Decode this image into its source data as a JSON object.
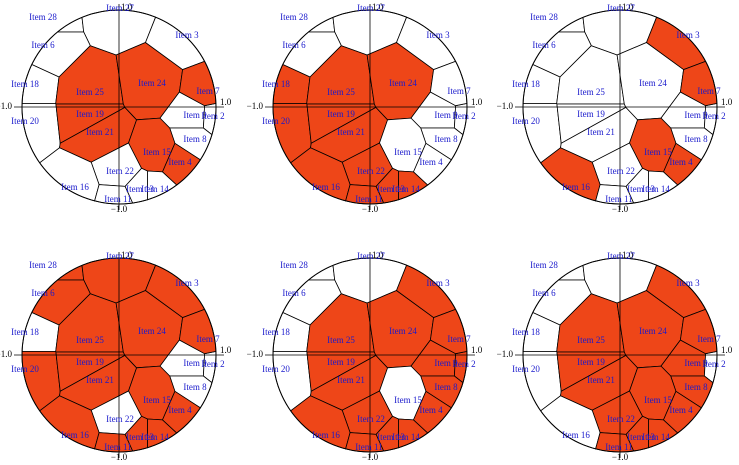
{
  "highlight_color": "#ee4618",
  "panels": [
    {
      "axis": {
        "left": "−1.0",
        "right": "1.0",
        "top": "1.0",
        "bottom": "−1.0"
      },
      "items": [
        {
          "label": "Item 28",
          "selected": false
        },
        {
          "label": "Item 27",
          "selected": false
        },
        {
          "label": "Item 6",
          "selected": false
        },
        {
          "label": "Item 18",
          "selected": false
        },
        {
          "label": "Item 20",
          "selected": false
        },
        {
          "label": "Item 25",
          "selected": true
        },
        {
          "label": "Item 19",
          "selected": true
        },
        {
          "label": "Item 21",
          "selected": true
        },
        {
          "label": "Item 24",
          "selected": true
        },
        {
          "label": "Item 3",
          "selected": false
        },
        {
          "label": "Item 9",
          "selected": false
        },
        {
          "label": "Item 2",
          "selected": false
        },
        {
          "label": "Item 8",
          "selected": false
        },
        {
          "label": "Item 15",
          "selected": true
        },
        {
          "label": "Item 4",
          "selected": true
        },
        {
          "label": "Item 22",
          "selected": false
        },
        {
          "label": "Item 16",
          "selected": false
        },
        {
          "label": "Item 14",
          "selected": false
        },
        {
          "label": "Item 13",
          "selected": false
        },
        {
          "label": "Item 7",
          "selected": true
        },
        {
          "label": "Item 11",
          "selected": false
        }
      ]
    },
    {
      "axis": {
        "left": "−1.0",
        "right": "1.0",
        "top": "1.0",
        "bottom": "−1.0"
      },
      "items": [
        {
          "label": "Item 28",
          "selected": false
        },
        {
          "label": "Item 27",
          "selected": false
        },
        {
          "label": "Item 6",
          "selected": false
        },
        {
          "label": "Item 18",
          "selected": true
        },
        {
          "label": "Item 20",
          "selected": true
        },
        {
          "label": "Item 25",
          "selected": true
        },
        {
          "label": "Item 19",
          "selected": true
        },
        {
          "label": "Item 21",
          "selected": true
        },
        {
          "label": "Item 24",
          "selected": true
        },
        {
          "label": "Item 3",
          "selected": false
        },
        {
          "label": "Item 9",
          "selected": false
        },
        {
          "label": "Item 2",
          "selected": false
        },
        {
          "label": "Item 8",
          "selected": false
        },
        {
          "label": "Item 15",
          "selected": false
        },
        {
          "label": "Item 4",
          "selected": false
        },
        {
          "label": "Item 22",
          "selected": true
        },
        {
          "label": "Item 16",
          "selected": true
        },
        {
          "label": "Item 14",
          "selected": true
        },
        {
          "label": "Item 13",
          "selected": true
        },
        {
          "label": "Item 7",
          "selected": false
        },
        {
          "label": "Item 11",
          "selected": true
        }
      ]
    },
    {
      "axis": {
        "left": "−1.0",
        "right": "1.0",
        "top": "1.0",
        "bottom": "−1.0"
      },
      "items": [
        {
          "label": "Item 28",
          "selected": false
        },
        {
          "label": "Item 27",
          "selected": false
        },
        {
          "label": "Item 6",
          "selected": false
        },
        {
          "label": "Item 18",
          "selected": false
        },
        {
          "label": "Item 20",
          "selected": false
        },
        {
          "label": "Item 25",
          "selected": false
        },
        {
          "label": "Item 19",
          "selected": false
        },
        {
          "label": "Item 21",
          "selected": false
        },
        {
          "label": "Item 24",
          "selected": false
        },
        {
          "label": "Item 3",
          "selected": true
        },
        {
          "label": "Item 9",
          "selected": false
        },
        {
          "label": "Item 2",
          "selected": false
        },
        {
          "label": "Item 8",
          "selected": false
        },
        {
          "label": "Item 15",
          "selected": true
        },
        {
          "label": "Item 4",
          "selected": true
        },
        {
          "label": "Item 22",
          "selected": false
        },
        {
          "label": "Item 16",
          "selected": true
        },
        {
          "label": "Item 14",
          "selected": false
        },
        {
          "label": "Item 13",
          "selected": false
        },
        {
          "label": "Item 7",
          "selected": true
        },
        {
          "label": "Item 11",
          "selected": false
        }
      ]
    },
    {
      "axis": {
        "left": "−1.0",
        "right": "1.0",
        "top": "1.0",
        "bottom": "−1.0"
      },
      "items": [
        {
          "label": "Item 28",
          "selected": true
        },
        {
          "label": "Item 27",
          "selected": true
        },
        {
          "label": "Item 6",
          "selected": true
        },
        {
          "label": "Item 18",
          "selected": false
        },
        {
          "label": "Item 20",
          "selected": true
        },
        {
          "label": "Item 25",
          "selected": true
        },
        {
          "label": "Item 19",
          "selected": true
        },
        {
          "label": "Item 21",
          "selected": true
        },
        {
          "label": "Item 24",
          "selected": true
        },
        {
          "label": "Item 3",
          "selected": true
        },
        {
          "label": "Item 9",
          "selected": false
        },
        {
          "label": "Item 2",
          "selected": false
        },
        {
          "label": "Item 8",
          "selected": false
        },
        {
          "label": "Item 15",
          "selected": true
        },
        {
          "label": "Item 4",
          "selected": true
        },
        {
          "label": "Item 22",
          "selected": false
        },
        {
          "label": "Item 16",
          "selected": true
        },
        {
          "label": "Item 14",
          "selected": true
        },
        {
          "label": "Item 13",
          "selected": true
        },
        {
          "label": "Item 7",
          "selected": true
        },
        {
          "label": "Item 11",
          "selected": true
        }
      ]
    },
    {
      "axis": {
        "left": "−1.0",
        "right": "1.0",
        "top": "1.0",
        "bottom": "−1.0"
      },
      "items": [
        {
          "label": "Item 28",
          "selected": false
        },
        {
          "label": "Item 27",
          "selected": false
        },
        {
          "label": "Item 6",
          "selected": false
        },
        {
          "label": "Item 18",
          "selected": false
        },
        {
          "label": "Item 20",
          "selected": false
        },
        {
          "label": "Item 25",
          "selected": true
        },
        {
          "label": "Item 19",
          "selected": true
        },
        {
          "label": "Item 21",
          "selected": true
        },
        {
          "label": "Item 24",
          "selected": true
        },
        {
          "label": "Item 3",
          "selected": true
        },
        {
          "label": "Item 9",
          "selected": true
        },
        {
          "label": "Item 2",
          "selected": true
        },
        {
          "label": "Item 8",
          "selected": true
        },
        {
          "label": "Item 15",
          "selected": false
        },
        {
          "label": "Item 4",
          "selected": true
        },
        {
          "label": "Item 22",
          "selected": true
        },
        {
          "label": "Item 16",
          "selected": true
        },
        {
          "label": "Item 14",
          "selected": true
        },
        {
          "label": "Item 13",
          "selected": true
        },
        {
          "label": "Item 7",
          "selected": true
        },
        {
          "label": "Item 11",
          "selected": true
        }
      ]
    },
    {
      "axis": {
        "left": "−1.0",
        "right": "1.0",
        "top": "1.0",
        "bottom": "−1.0"
      },
      "items": [
        {
          "label": "Item 28",
          "selected": false
        },
        {
          "label": "Item 27",
          "selected": false
        },
        {
          "label": "Item 6",
          "selected": false
        },
        {
          "label": "Item 18",
          "selected": false
        },
        {
          "label": "Item 20",
          "selected": false
        },
        {
          "label": "Item 25",
          "selected": true
        },
        {
          "label": "Item 19",
          "selected": true
        },
        {
          "label": "Item 21",
          "selected": true
        },
        {
          "label": "Item 24",
          "selected": true
        },
        {
          "label": "Item 3",
          "selected": true
        },
        {
          "label": "Item 9",
          "selected": true
        },
        {
          "label": "Item 2",
          "selected": false
        },
        {
          "label": "Item 8",
          "selected": true
        },
        {
          "label": "Item 15",
          "selected": true
        },
        {
          "label": "Item 4",
          "selected": true
        },
        {
          "label": "Item 22",
          "selected": true
        },
        {
          "label": "Item 16",
          "selected": false
        },
        {
          "label": "Item 14",
          "selected": true
        },
        {
          "label": "Item 13",
          "selected": true
        },
        {
          "label": "Item 7",
          "selected": true
        },
        {
          "label": "Item 11",
          "selected": true
        }
      ]
    }
  ]
}
